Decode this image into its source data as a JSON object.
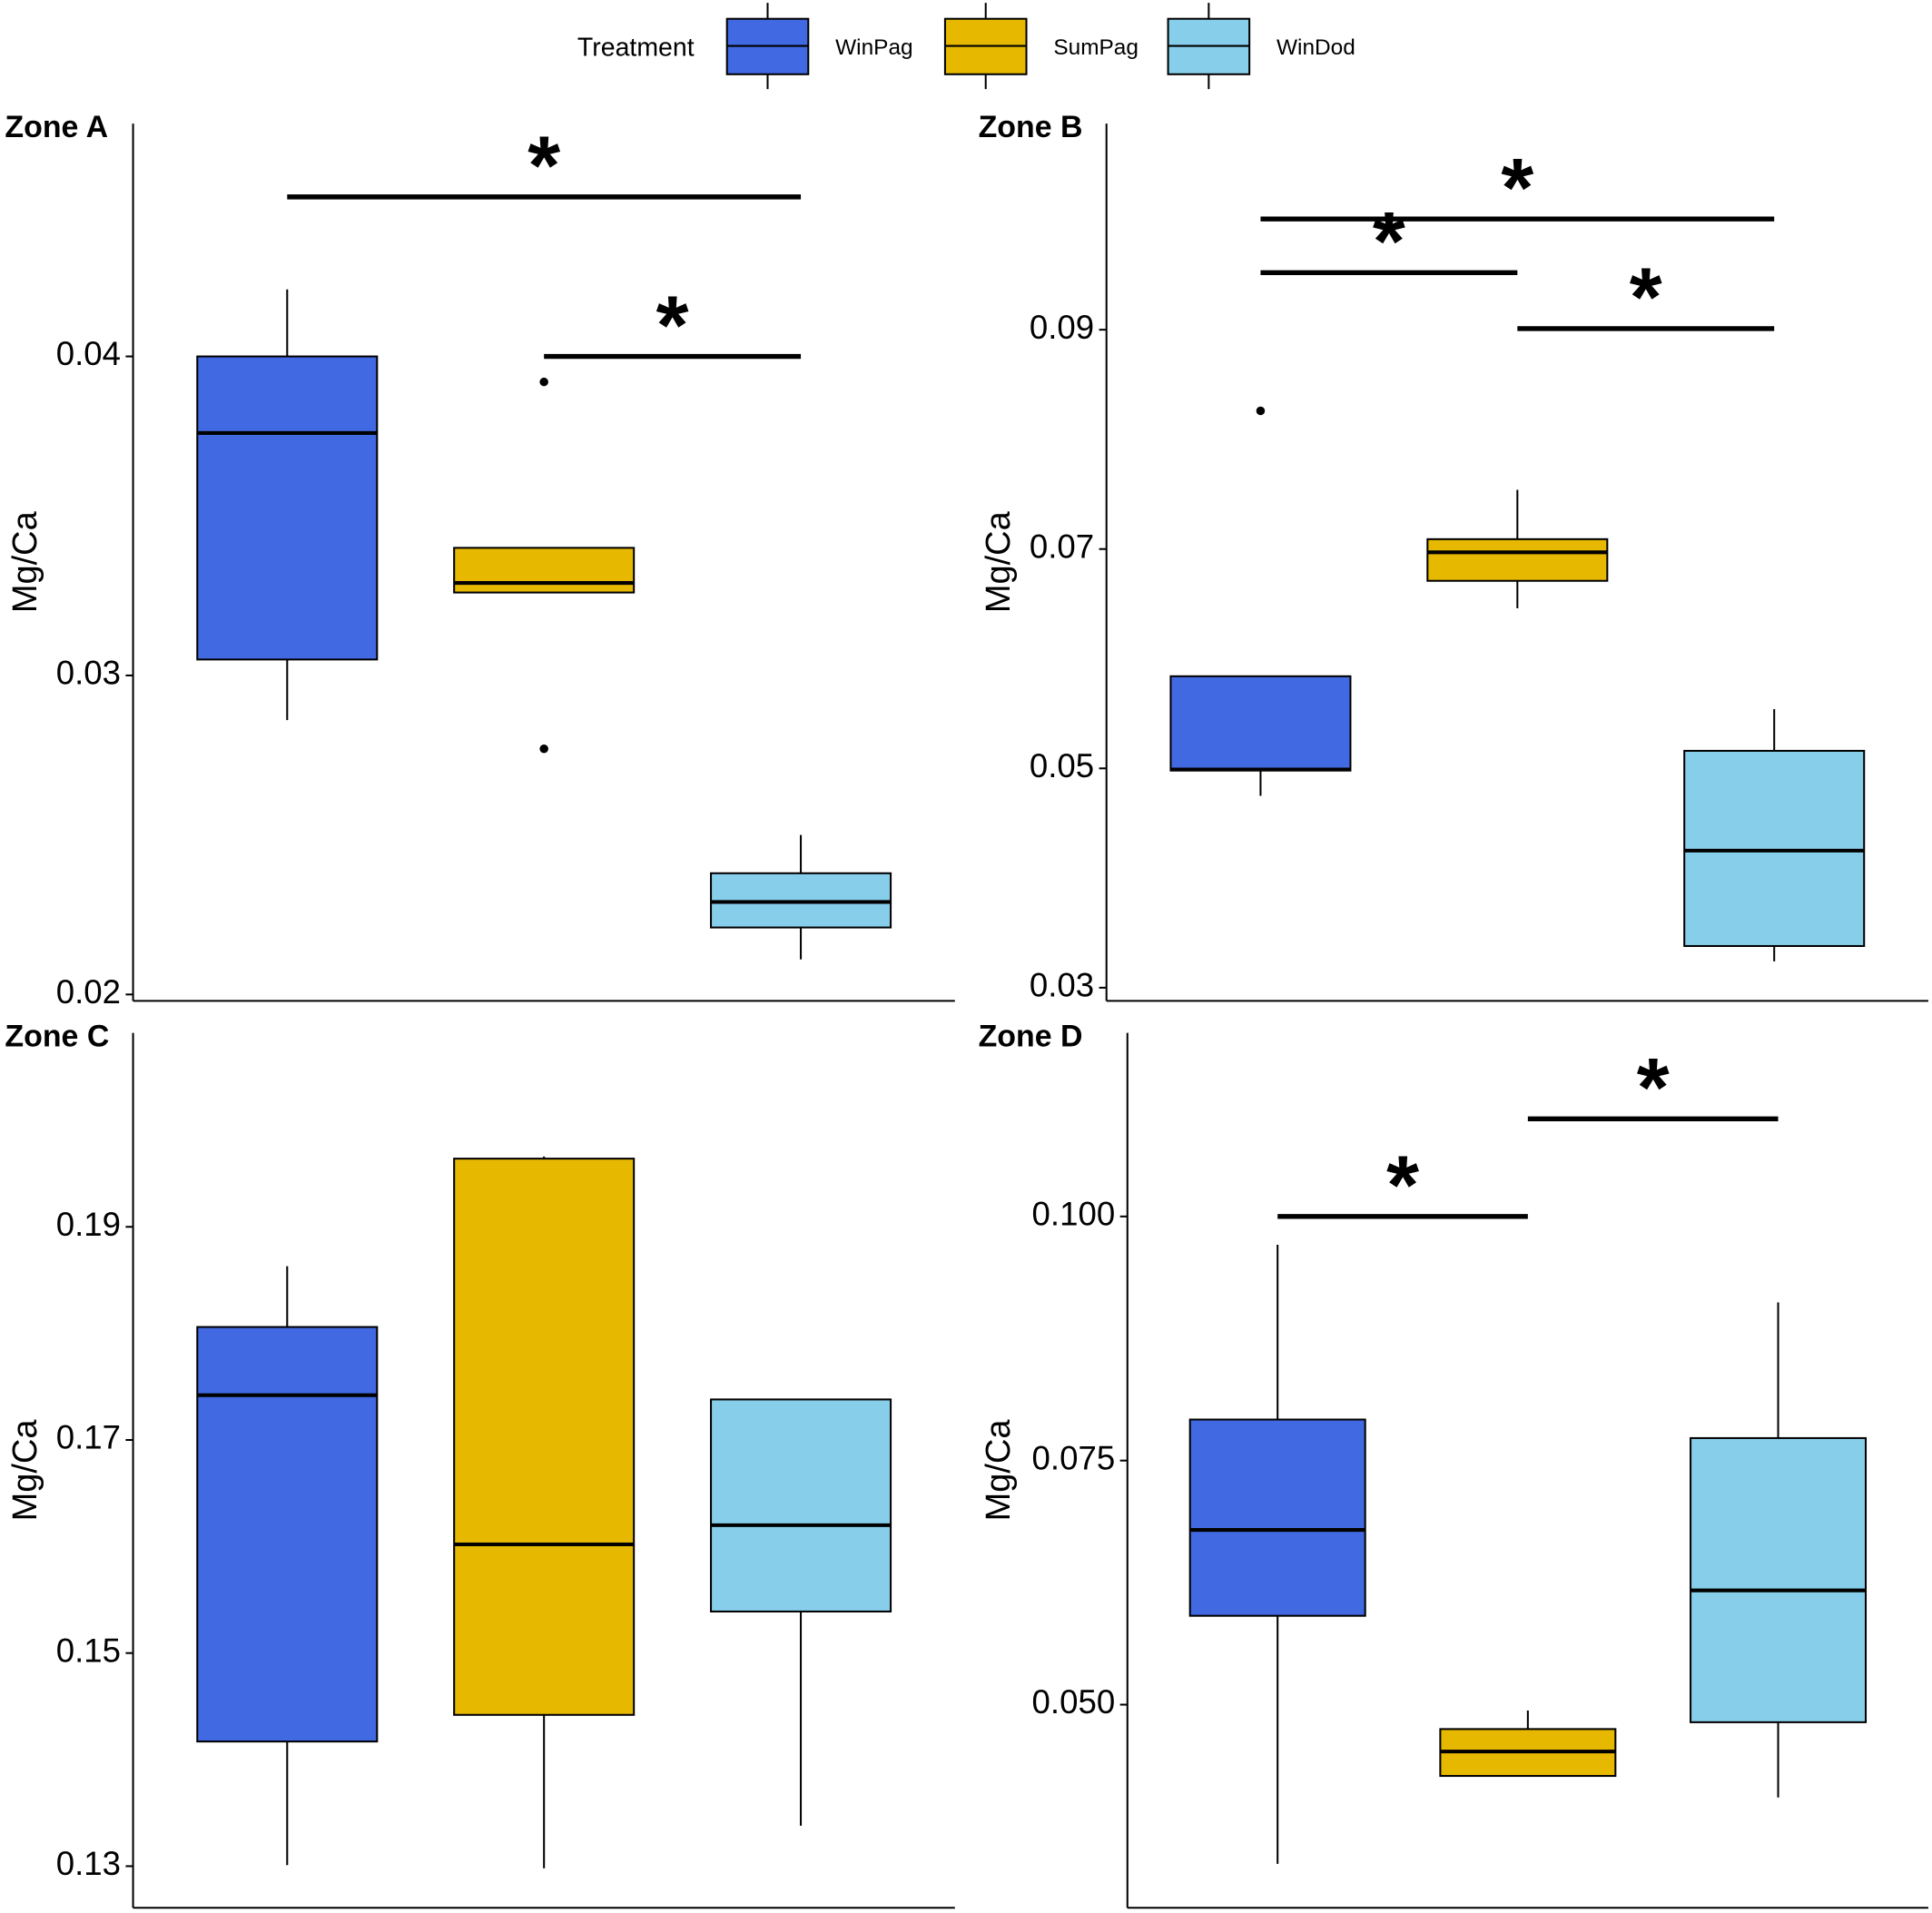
{
  "legend": {
    "title": "Treatment",
    "entries": [
      {
        "name": "WinPag",
        "color": "#4169e1"
      },
      {
        "name": "SumPag",
        "color": "#e6b800"
      },
      {
        "name": "WinDod",
        "color": "#87ceeb"
      }
    ]
  },
  "chart_data": [
    {
      "type": "box",
      "title": "Zone A",
      "y_label": "Mg/Ca",
      "ylim": [
        0.0198,
        0.0473
      ],
      "yticks": [
        0.02,
        0.03,
        0.04
      ],
      "series": [
        {
          "min": 0.0286,
          "q1": 0.0305,
          "median": 0.0376,
          "q3": 0.04,
          "max": 0.0421,
          "outliers": []
        },
        {
          "min": 0.0326,
          "q1": 0.0326,
          "median": 0.0329,
          "q3": 0.034,
          "max": 0.034,
          "outliers": [
            0.0392,
            0.0277
          ]
        },
        {
          "min": 0.0211,
          "q1": 0.0221,
          "median": 0.0229,
          "q3": 0.0238,
          "max": 0.025,
          "outliers": []
        }
      ],
      "comparisons": [
        {
          "from": 1,
          "to": 3,
          "y": 0.045,
          "label": "*"
        },
        {
          "from": 2,
          "to": 3,
          "y": 0.04,
          "label": "*"
        }
      ]
    },
    {
      "type": "box",
      "title": "Zone B",
      "y_label": "Mg/Ca",
      "ylim": [
        0.0288,
        0.1088
      ],
      "yticks": [
        0.03,
        0.05,
        0.07,
        0.09
      ],
      "series": [
        {
          "min": 0.0475,
          "q1": 0.0498,
          "median": 0.0499,
          "q3": 0.0584,
          "max": 0.0584,
          "outliers": [
            0.0826
          ]
        },
        {
          "min": 0.0646,
          "q1": 0.0671,
          "median": 0.0697,
          "q3": 0.0709,
          "max": 0.0754,
          "outliers": []
        },
        {
          "min": 0.0324,
          "q1": 0.0338,
          "median": 0.0425,
          "q3": 0.0516,
          "max": 0.0554,
          "outliers": []
        }
      ],
      "comparisons": [
        {
          "from": 1,
          "to": 3,
          "y": 0.1001,
          "label": "*"
        },
        {
          "from": 1,
          "to": 2,
          "y": 0.0952,
          "label": "*"
        },
        {
          "from": 2,
          "to": 3,
          "y": 0.0901,
          "label": "*"
        }
      ]
    },
    {
      "type": "box",
      "title": "Zone C",
      "y_label": "Mg/Ca",
      "ylim": [
        0.1261,
        0.2082
      ],
      "yticks": [
        0.13,
        0.15,
        0.17,
        0.19
      ],
      "series": [
        {
          "min": 0.1301,
          "q1": 0.1417,
          "median": 0.1742,
          "q3": 0.1806,
          "max": 0.1863,
          "outliers": []
        },
        {
          "min": 0.1298,
          "q1": 0.1442,
          "median": 0.1602,
          "q3": 0.1964,
          "max": 0.1966,
          "outliers": []
        },
        {
          "min": 0.1338,
          "q1": 0.1539,
          "median": 0.162,
          "q3": 0.1738,
          "max": 0.1738,
          "outliers": []
        }
      ],
      "comparisons": []
    },
    {
      "type": "box",
      "title": "Zone D",
      "y_label": "Mg/Ca",
      "ylim": [
        0.0292,
        0.1188
      ],
      "yticks": [
        {
          "value": 0.05,
          "label": "0.050"
        },
        0.075,
        {
          "value": 0.1,
          "label": "0.100"
        }
      ],
      "series": [
        {
          "min": 0.0337,
          "q1": 0.0591,
          "median": 0.0679,
          "q3": 0.0792,
          "max": 0.0971,
          "outliers": []
        },
        {
          "min": 0.0427,
          "q1": 0.0427,
          "median": 0.0452,
          "q3": 0.0475,
          "max": 0.0494,
          "outliers": []
        },
        {
          "min": 0.0405,
          "q1": 0.0482,
          "median": 0.0617,
          "q3": 0.0773,
          "max": 0.0912,
          "outliers": []
        }
      ],
      "comparisons": [
        {
          "from": 1,
          "to": 2,
          "y": 0.1,
          "label": "*"
        },
        {
          "from": 2,
          "to": 3,
          "y": 0.11,
          "label": "*"
        }
      ]
    }
  ]
}
